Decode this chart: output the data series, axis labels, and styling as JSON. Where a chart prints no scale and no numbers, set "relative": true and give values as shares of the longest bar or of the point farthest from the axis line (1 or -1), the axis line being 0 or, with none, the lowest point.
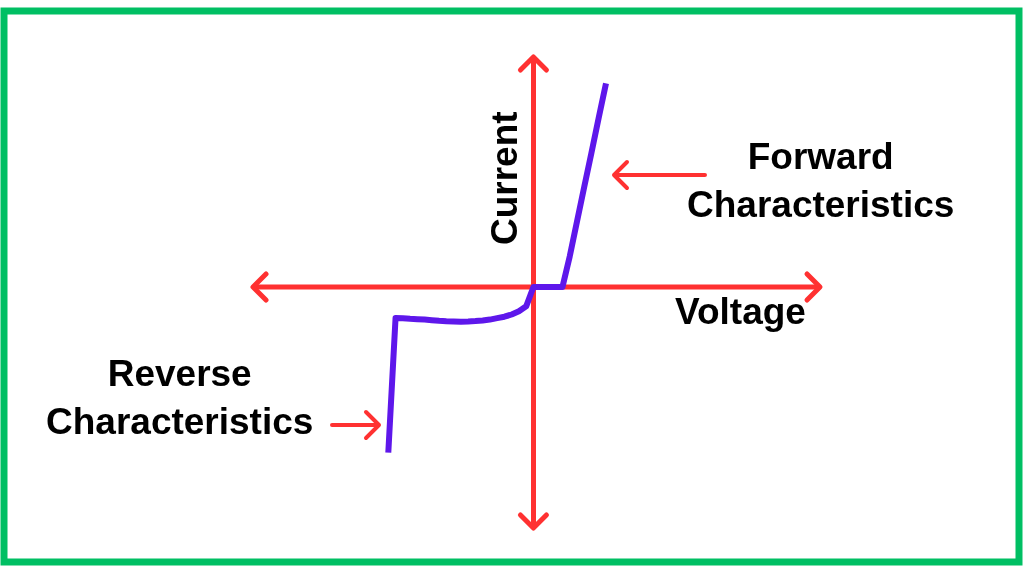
{
  "chart_data": {
    "type": "line",
    "relative": true,
    "xlabel": "Voltage",
    "ylabel": "Current",
    "categories": [
      null,
      null,
      null,
      null,
      null,
      null,
      null,
      null,
      null,
      null,
      null,
      null,
      null,
      null,
      null,
      null,
      null,
      null,
      null,
      null,
      null,
      null,
      null,
      null,
      null,
      null,
      null,
      null,
      null,
      null,
      null
    ],
    "series": [
      {
        "color": "#5e17eb",
        "values": [
          -0.813,
          -0.152,
          -0.153,
          -0.156,
          -0.158,
          -0.16,
          -0.163,
          -0.166,
          -0.168,
          -0.169,
          -0.17,
          -0.169,
          -0.167,
          -0.164,
          -0.16,
          -0.153,
          -0.146,
          -0.135,
          -0.119,
          -0.095,
          0,
          0,
          0,
          0,
          0,
          0.15,
          0.321,
          0.492,
          0.66,
          0.831,
          1
        ]
      }
    ],
    "ref_lines": [
      {
        "axis": "y",
        "value": 0,
        "color": "#ff3131"
      }
    ],
    "annotations": [
      "Forward\nCharacteristics",
      "Reverse\nCharacteristics"
    ]
  }
}
